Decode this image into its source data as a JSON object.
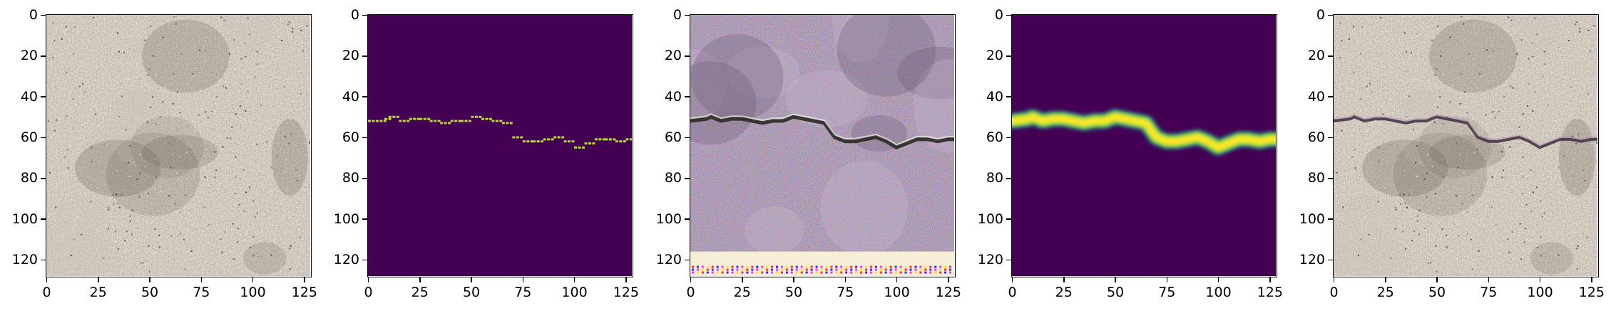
{
  "figure": {
    "panels": [
      {
        "kind": "concrete-texture",
        "has_crack": false
      },
      {
        "kind": "binary-crack-mask",
        "background_color": "#440154",
        "crack_color": "#b5de2b"
      },
      {
        "kind": "noisy-generated-texture",
        "has_crack": true
      },
      {
        "kind": "blurred-crack-heatmap",
        "background_color": "#440154",
        "peak_color": "#fde725",
        "edge_color": "#21918c"
      },
      {
        "kind": "concrete-texture-with-crack",
        "has_crack": true
      }
    ],
    "axis": {
      "xlim": [
        0,
        128
      ],
      "ylim": [
        128,
        0
      ],
      "xticks": [
        "0",
        "25",
        "50",
        "75",
        "100",
        "125"
      ],
      "yticks": [
        "0",
        "20",
        "40",
        "60",
        "80",
        "100",
        "120"
      ]
    },
    "crack_path": {
      "x": [
        0,
        8,
        10,
        15,
        20,
        25,
        30,
        35,
        40,
        45,
        50,
        55,
        60,
        65,
        70,
        75,
        80,
        85,
        90,
        95,
        100,
        105,
        110,
        115,
        120,
        125,
        128
      ],
      "y": [
        52,
        51,
        50,
        52,
        51,
        51,
        52,
        53,
        52,
        52,
        50,
        51,
        52,
        53,
        60,
        62,
        62,
        61,
        60,
        62,
        65,
        63,
        61,
        61,
        62,
        61,
        61
      ]
    }
  }
}
